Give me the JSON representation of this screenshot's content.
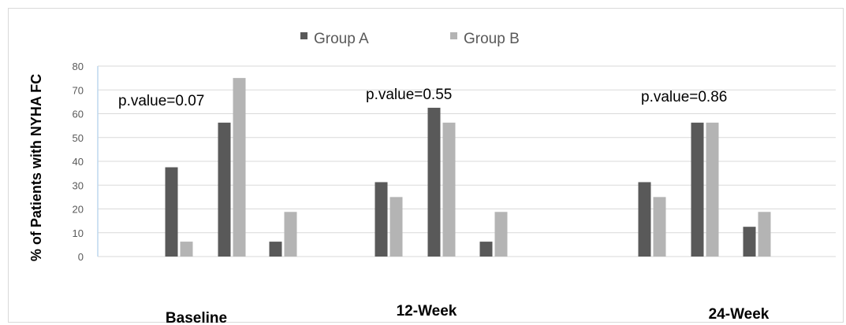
{
  "chart_data": {
    "type": "bar",
    "ylabel": "% of Patients with NYHA FC",
    "ylim": [
      0,
      80
    ],
    "yticks": [
      0,
      10,
      20,
      30,
      40,
      50,
      60,
      70,
      80
    ],
    "grid": true,
    "legend_position": "top-center",
    "colors": {
      "Group A": "#595959",
      "Group B": "#b4b4b4",
      "grid": "#d9d9d9",
      "axis": "#bdd7ee"
    },
    "periods": [
      {
        "label": "Baseline",
        "pvalue": "p.value=0.07",
        "groups": [
          {
            "A": 37.5,
            "B": 6.25
          },
          {
            "A": 56.25,
            "B": 75
          },
          {
            "A": 6.25,
            "B": 18.75
          }
        ]
      },
      {
        "label": "12-Week",
        "pvalue": "p.value=0.55",
        "groups": [
          {
            "A": 31.25,
            "B": 25
          },
          {
            "A": 62.5,
            "B": 56.25
          },
          {
            "A": 6.25,
            "B": 18.75
          }
        ]
      },
      {
        "label": "24-Week",
        "pvalue": "p.value=0.86",
        "groups": [
          {
            "A": 31.25,
            "B": 25
          },
          {
            "A": 56.25,
            "B": 56.25
          },
          {
            "A": 12.5,
            "B": 18.75
          }
        ]
      }
    ],
    "series": [
      {
        "name": "Group A",
        "values": [
          37.5,
          56.25,
          6.25,
          31.25,
          62.5,
          6.25,
          31.25,
          56.25,
          12.5
        ]
      },
      {
        "name": "Group B",
        "values": [
          6.25,
          75,
          18.75,
          25,
          56.25,
          18.75,
          25,
          56.25,
          18.75
        ]
      }
    ]
  }
}
